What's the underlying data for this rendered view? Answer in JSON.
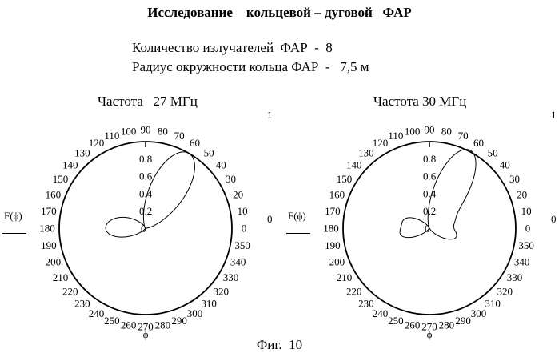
{
  "title": "Исследование    кольцевой – дуговой   ФАР",
  "info": {
    "emitters": "Количество излучателей  ФАР  -  8",
    "radius": "Радиус окружности кольца ФАР  -   7,5 м"
  },
  "figure_caption": "Фиг.  10",
  "chart_data": [
    {
      "type": "polar",
      "title": "Частота   27 МГц",
      "ylabel": "F(ϕ)",
      "xlabel": "ϕ",
      "r_max_label": "1",
      "r_min_label": "0",
      "radial_ticks": [
        "0.2",
        "0.4",
        "0.6",
        "0.8"
      ],
      "angle_ticks": [
        "0",
        "10",
        "20",
        "30",
        "40",
        "50",
        "60",
        "70",
        "80",
        "90",
        "100",
        "110",
        "120",
        "130",
        "140",
        "150",
        "160",
        "170",
        "180",
        "190",
        "200",
        "210",
        "220",
        "230",
        "240",
        "250",
        "260",
        "270",
        "280",
        "290",
        "300",
        "310",
        "320",
        "330",
        "340",
        "350"
      ],
      "rlim": [
        0,
        1
      ],
      "lobes": [
        {
          "direction_deg": 60,
          "amplitude": 1.0,
          "width_deg": 20
        },
        {
          "direction_deg": 165,
          "amplitude": 0.3,
          "width_deg": 20
        },
        {
          "direction_deg": 190,
          "amplitude": 0.28,
          "width_deg": 17
        }
      ]
    },
    {
      "type": "polar",
      "title": "Частота 30 МГц",
      "ylabel": "F(ϕ)",
      "xlabel": "ϕ",
      "r_max_label": "1",
      "r_min_label": "0",
      "radial_ticks": [
        "0.2",
        "0.4",
        "0.6",
        "0.8"
      ],
      "angle_ticks": [
        "0",
        "10",
        "20",
        "30",
        "40",
        "50",
        "60",
        "70",
        "80",
        "90",
        "100",
        "110",
        "120",
        "130",
        "140",
        "150",
        "160",
        "170",
        "180",
        "190",
        "200",
        "210",
        "220",
        "230",
        "240",
        "250",
        "260",
        "270",
        "280",
        "290",
        "300",
        "310",
        "320",
        "330",
        "340",
        "350"
      ],
      "rlim": [
        0,
        1
      ],
      "lobes": [
        {
          "direction_deg": 63,
          "amplitude": 1.0,
          "width_deg": 17
        },
        {
          "direction_deg": 160,
          "amplitude": 0.28,
          "width_deg": 17
        },
        {
          "direction_deg": 20,
          "amplitude": 0.27,
          "width_deg": 18
        },
        {
          "direction_deg": 195,
          "amplitude": 0.3,
          "width_deg": 16
        },
        {
          "direction_deg": 340,
          "amplitude": 0.3,
          "width_deg": 16
        }
      ]
    }
  ]
}
